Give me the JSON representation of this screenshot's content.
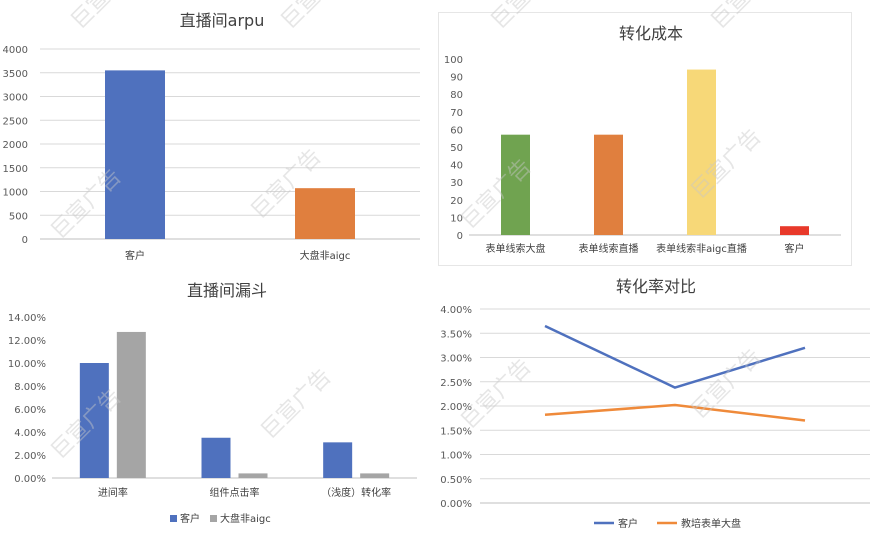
{
  "chart_data": [
    {
      "type": "bar",
      "title": "直播间arpu",
      "categories": [
        "客户",
        "大盘非aigc"
      ],
      "values": [
        3550,
        1070
      ],
      "ylim": [
        0,
        4000
      ],
      "yticks": [
        "0",
        "500",
        "1000",
        "1500",
        "2000",
        "2500",
        "3000",
        "3500",
        "4000"
      ],
      "colors": [
        "#4f71be",
        "#e07f3e"
      ],
      "grid": true
    },
    {
      "type": "bar",
      "title": "转化成本",
      "categories": [
        "表单线索大盘",
        "表单线索直播",
        "表单线索非aigc直播",
        "客户"
      ],
      "values": [
        57,
        57,
        94,
        5
      ],
      "ylim": [
        0,
        100
      ],
      "yticks": [
        "0",
        "10",
        "20",
        "30",
        "40",
        "50",
        "60",
        "70",
        "80",
        "90",
        "100"
      ],
      "colors": [
        "#70a350",
        "#e07f3e",
        "#f7d878",
        "#e8392a"
      ],
      "grid": false
    },
    {
      "type": "bar",
      "title": "直播间漏斗",
      "categories": [
        "进间率",
        "组件点击率",
        "（浅度）转化率"
      ],
      "series": [
        {
          "name": "客户",
          "values": [
            10.0,
            3.5,
            3.1
          ],
          "color": "#4f71be"
        },
        {
          "name": "大盘非aigc",
          "values": [
            12.7,
            0.4,
            0.4
          ],
          "color": "#a5a5a5"
        }
      ],
      "ylim": [
        0,
        14
      ],
      "yticks": [
        "0.00%",
        "2.00%",
        "4.00%",
        "6.00%",
        "8.00%",
        "10.00%",
        "12.00%",
        "14.00%"
      ],
      "legend": "bottom",
      "grid": false
    },
    {
      "type": "line",
      "title": "转化率对比",
      "categories": [
        "",
        "",
        ""
      ],
      "series": [
        {
          "name": "客户",
          "values": [
            3.65,
            2.38,
            3.2
          ],
          "color": "#4f71be"
        },
        {
          "name": "教培表单大盘",
          "values": [
            1.82,
            2.02,
            1.7
          ],
          "color": "#ef8a3a"
        }
      ],
      "ylim": [
        0,
        4
      ],
      "yticks": [
        "0.00%",
        "0.50%",
        "1.00%",
        "1.50%",
        "2.00%",
        "2.50%",
        "3.00%",
        "3.50%",
        "4.00%"
      ],
      "legend": "bottom",
      "grid": true
    }
  ],
  "watermark": "巨宣广告"
}
